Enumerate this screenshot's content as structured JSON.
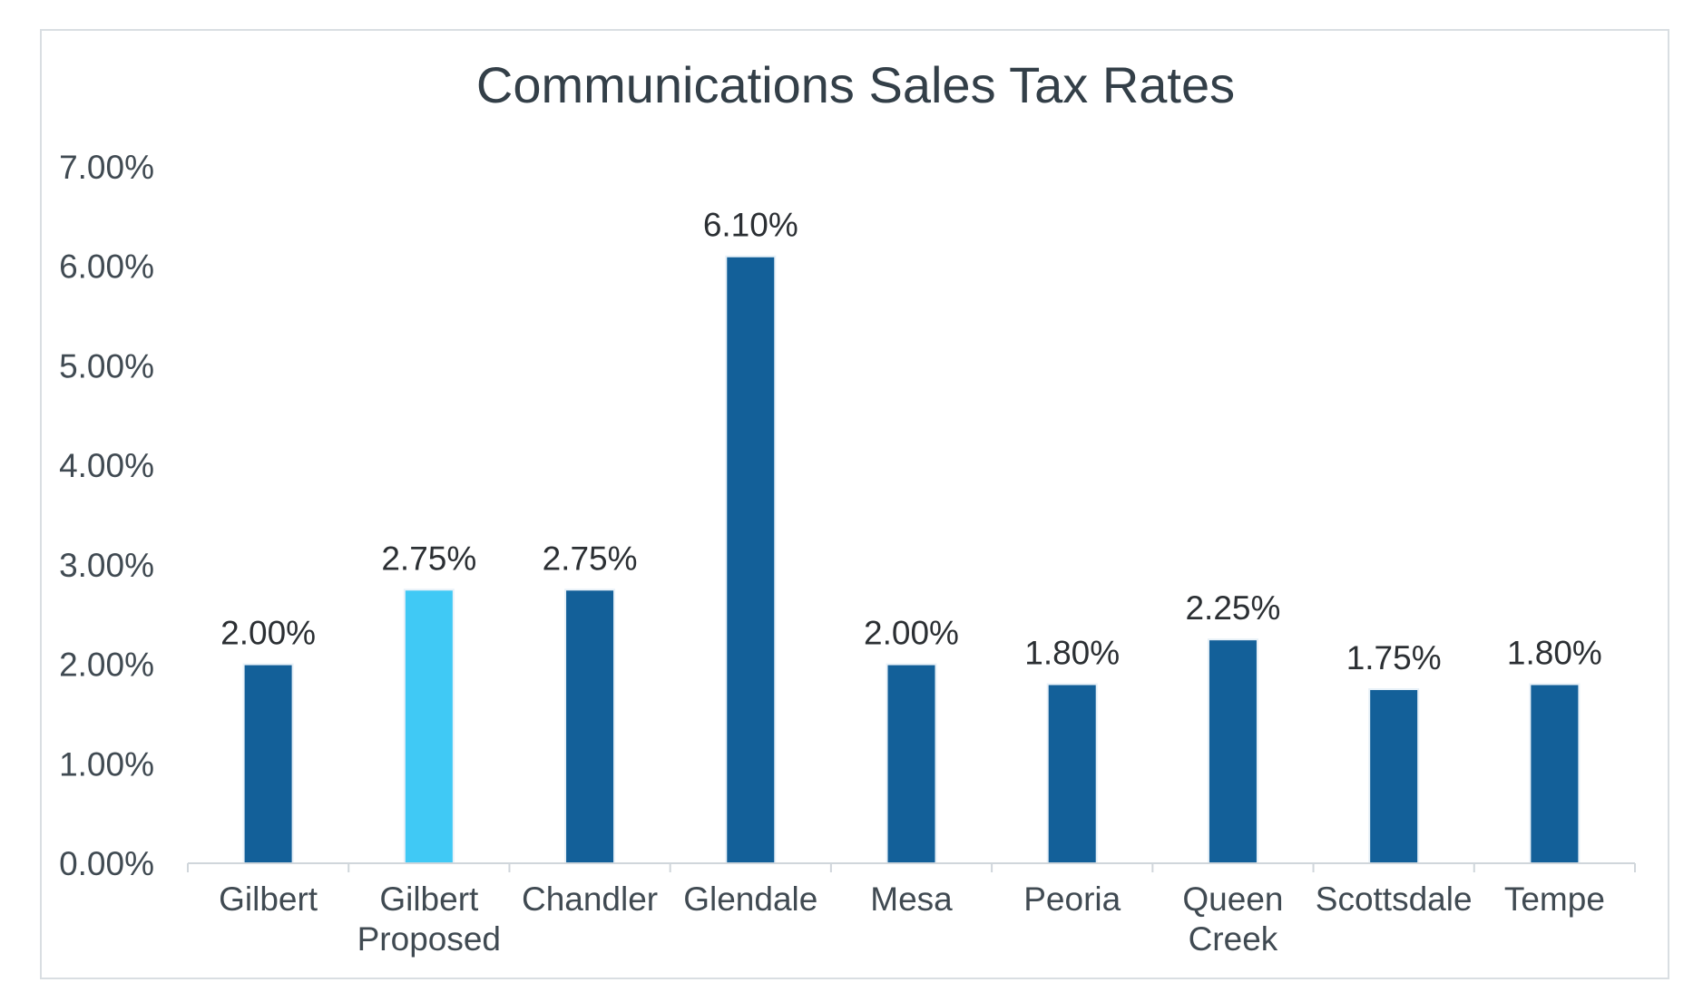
{
  "chart_data": {
    "type": "bar",
    "title": "Communications Sales Tax Rates",
    "xlabel": "",
    "ylabel": "",
    "ylim": [
      0,
      7
    ],
    "y_ticks": [
      0,
      1,
      2,
      3,
      4,
      5,
      6,
      7
    ],
    "y_tick_labels": [
      "0.00%",
      "1.00%",
      "2.00%",
      "3.00%",
      "4.00%",
      "5.00%",
      "6.00%",
      "7.00%"
    ],
    "grid": false,
    "legend": "none",
    "categories": [
      [
        "Gilbert"
      ],
      [
        "Gilbert",
        "Proposed"
      ],
      [
        "Chandler"
      ],
      [
        "Glendale"
      ],
      [
        "Mesa"
      ],
      [
        "Peoria"
      ],
      [
        "Queen",
        "Creek"
      ],
      [
        "Scottsdale"
      ],
      [
        "Tempe"
      ]
    ],
    "values": [
      2.0,
      2.75,
      2.75,
      6.1,
      2.0,
      1.8,
      2.25,
      1.75,
      1.8
    ],
    "data_labels": [
      "2.00%",
      "2.75%",
      "2.75%",
      "6.10%",
      "2.00%",
      "1.80%",
      "2.25%",
      "1.75%",
      "1.80%"
    ],
    "colors": {
      "default_bar": "#136099",
      "highlight_bar": "#40c9f5",
      "axis": "#d0d6db"
    },
    "highlight_index": 1
  }
}
